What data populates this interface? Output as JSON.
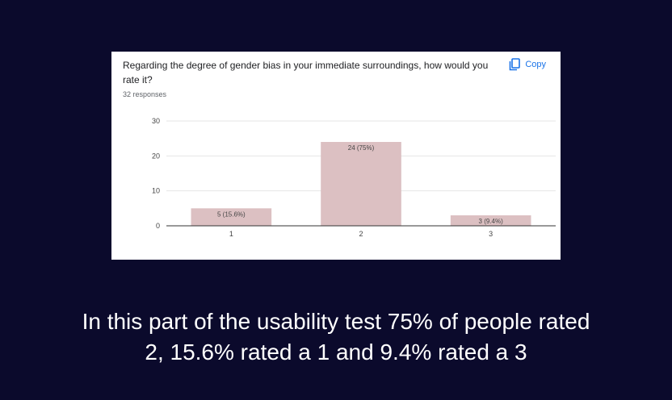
{
  "card": {
    "question": "Regarding the degree of gender bias in your immediate surroundings, how would you rate it?",
    "responses": "32 responses",
    "copy_label": "Copy"
  },
  "chart_data": {
    "type": "bar",
    "categories": [
      "1",
      "2",
      "3"
    ],
    "values": [
      5,
      24,
      3
    ],
    "data_labels": [
      "5 (15.6%)",
      "24 (75%)",
      "3 (9.4%)"
    ],
    "yticks": [
      0,
      10,
      20,
      30
    ],
    "ylim": [
      0,
      30
    ],
    "grid": true,
    "bar_color": "#dcc0c2",
    "title": "",
    "xlabel": "",
    "ylabel": ""
  },
  "caption": {
    "line1": "In this part of the usability test 75% of people rated",
    "line2": "2, 15.6% rated  a 1 and 9.4% rated a 3"
  }
}
